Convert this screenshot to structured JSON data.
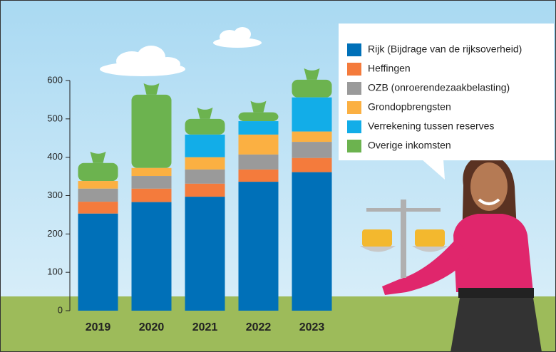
{
  "chart_data": {
    "type": "stacked_bar",
    "categories": [
      "2019",
      "2020",
      "2021",
      "2022",
      "2023"
    ],
    "series": [
      {
        "name": "Rijk (Bijdrage van de rijksoverheid)",
        "color": "#0070b8",
        "values": [
          253,
          283,
          297,
          336,
          361
        ]
      },
      {
        "name": "Heffingen",
        "color": "#f47b3c",
        "values": [
          31,
          35,
          34,
          32,
          37
        ]
      },
      {
        "name": "OZB (onroerendezaakbelasting)",
        "color": "#9a9a9a",
        "values": [
          34,
          33,
          37,
          39,
          42
        ]
      },
      {
        "name": "Grondopbrengsten",
        "color": "#fbb042",
        "values": [
          20,
          21,
          32,
          52,
          27
        ]
      },
      {
        "name": "Verrekening tussen reserves",
        "color": "#12ade8",
        "values": [
          0,
          0,
          59,
          35,
          89
        ]
      },
      {
        "name": "Overige inkomsten",
        "color": "#6cb34f",
        "values": [
          47,
          191,
          41,
          23,
          46
        ]
      }
    ],
    "ylim": [
      0,
      600
    ],
    "yticks": [
      0,
      100,
      200,
      300,
      400,
      500,
      600
    ]
  }
}
